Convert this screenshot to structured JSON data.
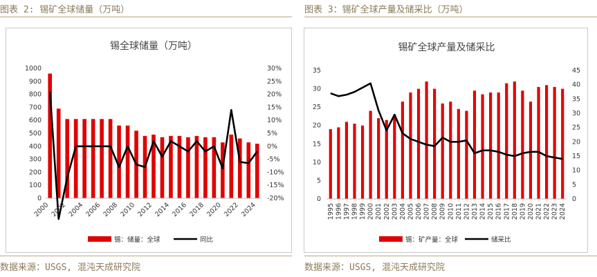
{
  "header": {
    "left_title": "图表 2: 锡矿全球储量（万吨）",
    "right_title": "图表 3：锡矿全球产量及储采比（万吨）"
  },
  "footer": {
    "left_source": "数据来源：USGS, 混沌天成研究院",
    "right_source": "数据来源：USGS, 混沌天成研究院"
  },
  "colors": {
    "bar": "#e00000",
    "line": "#000000",
    "accent": "#b8a77f"
  },
  "chart_data": [
    {
      "type": "bar",
      "title": "锡全球储量（万吨）",
      "x": [
        2000,
        2001,
        2002,
        2003,
        2004,
        2005,
        2006,
        2007,
        2008,
        2009,
        2010,
        2011,
        2012,
        2013,
        2014,
        2015,
        2016,
        2017,
        2018,
        2019,
        2020,
        2021,
        2022,
        2023,
        2024
      ],
      "x_tick_labels": [
        "2000",
        "2002",
        "2004",
        "2006",
        "2008",
        "2010",
        "2012",
        "2014",
        "2016",
        "2018",
        "2020",
        "2022",
        "2024"
      ],
      "series": [
        {
          "name": "锡：储量：全球",
          "type": "bar",
          "axis": "left",
          "values": [
            960,
            690,
            610,
            610,
            610,
            610,
            610,
            610,
            560,
            560,
            520,
            480,
            490,
            470,
            480,
            480,
            470,
            480,
            470,
            470,
            430,
            490,
            460,
            430,
            420
          ]
        },
        {
          "name": "同比",
          "type": "line",
          "axis": "right",
          "values": [
            0.21,
            -0.28,
            -0.12,
            0.0,
            0.0,
            0.0,
            0.0,
            0.0,
            -0.08,
            0.0,
            -0.07,
            -0.08,
            0.02,
            -0.04,
            0.02,
            0.0,
            -0.02,
            0.02,
            -0.02,
            0.0,
            -0.085,
            0.14,
            -0.06,
            -0.065,
            -0.02
          ]
        }
      ],
      "ylim": [
        0,
        1000
      ],
      "y_ticks": [
        0,
        100,
        200,
        300,
        400,
        500,
        600,
        700,
        800,
        900,
        1000
      ],
      "y2lim": [
        -0.2,
        0.3
      ],
      "y2_tick_labels": [
        "30%",
        "25%",
        "20%",
        "15%",
        "10%",
        "5%",
        "0%",
        "-5%",
        "-10%",
        "-15%",
        "-20%"
      ],
      "legend": [
        "锡：储量：全球",
        "同比"
      ],
      "legend_position": "bottom"
    },
    {
      "type": "bar",
      "title": "锡矿全球产量及储采比",
      "x": [
        1995,
        1996,
        1997,
        1998,
        1999,
        2000,
        2001,
        2002,
        2003,
        2004,
        2005,
        2006,
        2007,
        2008,
        2009,
        2010,
        2011,
        2012,
        2013,
        2014,
        2015,
        2016,
        2017,
        2018,
        2019,
        2020,
        2021,
        2022,
        2023,
        2024
      ],
      "series": [
        {
          "name": "锡：矿产量：全球",
          "type": "bar",
          "axis": "left",
          "values": [
            19.0,
            19.5,
            21.0,
            20.5,
            20.0,
            24.0,
            22.0,
            21.5,
            23.0,
            26.5,
            29.0,
            30.0,
            32.0,
            30.0,
            26.0,
            26.5,
            24.5,
            24.0,
            29.5,
            28.5,
            29.0,
            29.0,
            31.5,
            32.0,
            29.5,
            26.5,
            30.5,
            31.0,
            30.5,
            30.0
          ]
        },
        {
          "name": "储采比",
          "type": "line",
          "axis": "right",
          "values": [
            37,
            36,
            36.5,
            37.5,
            39,
            40.5,
            31,
            24,
            29.5,
            23,
            21,
            20,
            19,
            18.5,
            21.5,
            20,
            20,
            20.5,
            16,
            17,
            17,
            16.5,
            15.5,
            15,
            16,
            16.5,
            16.5,
            15,
            14.5,
            14
          ]
        }
      ],
      "ylim": [
        0,
        35
      ],
      "y_ticks": [
        0,
        5,
        10,
        15,
        20,
        25,
        30,
        35
      ],
      "y2lim": [
        0,
        45
      ],
      "y2_ticks": [
        0,
        5,
        10,
        15,
        20,
        25,
        30,
        35,
        40,
        45
      ],
      "legend": [
        "锡：矿产量：全球",
        "储采比"
      ],
      "legend_position": "bottom"
    }
  ]
}
